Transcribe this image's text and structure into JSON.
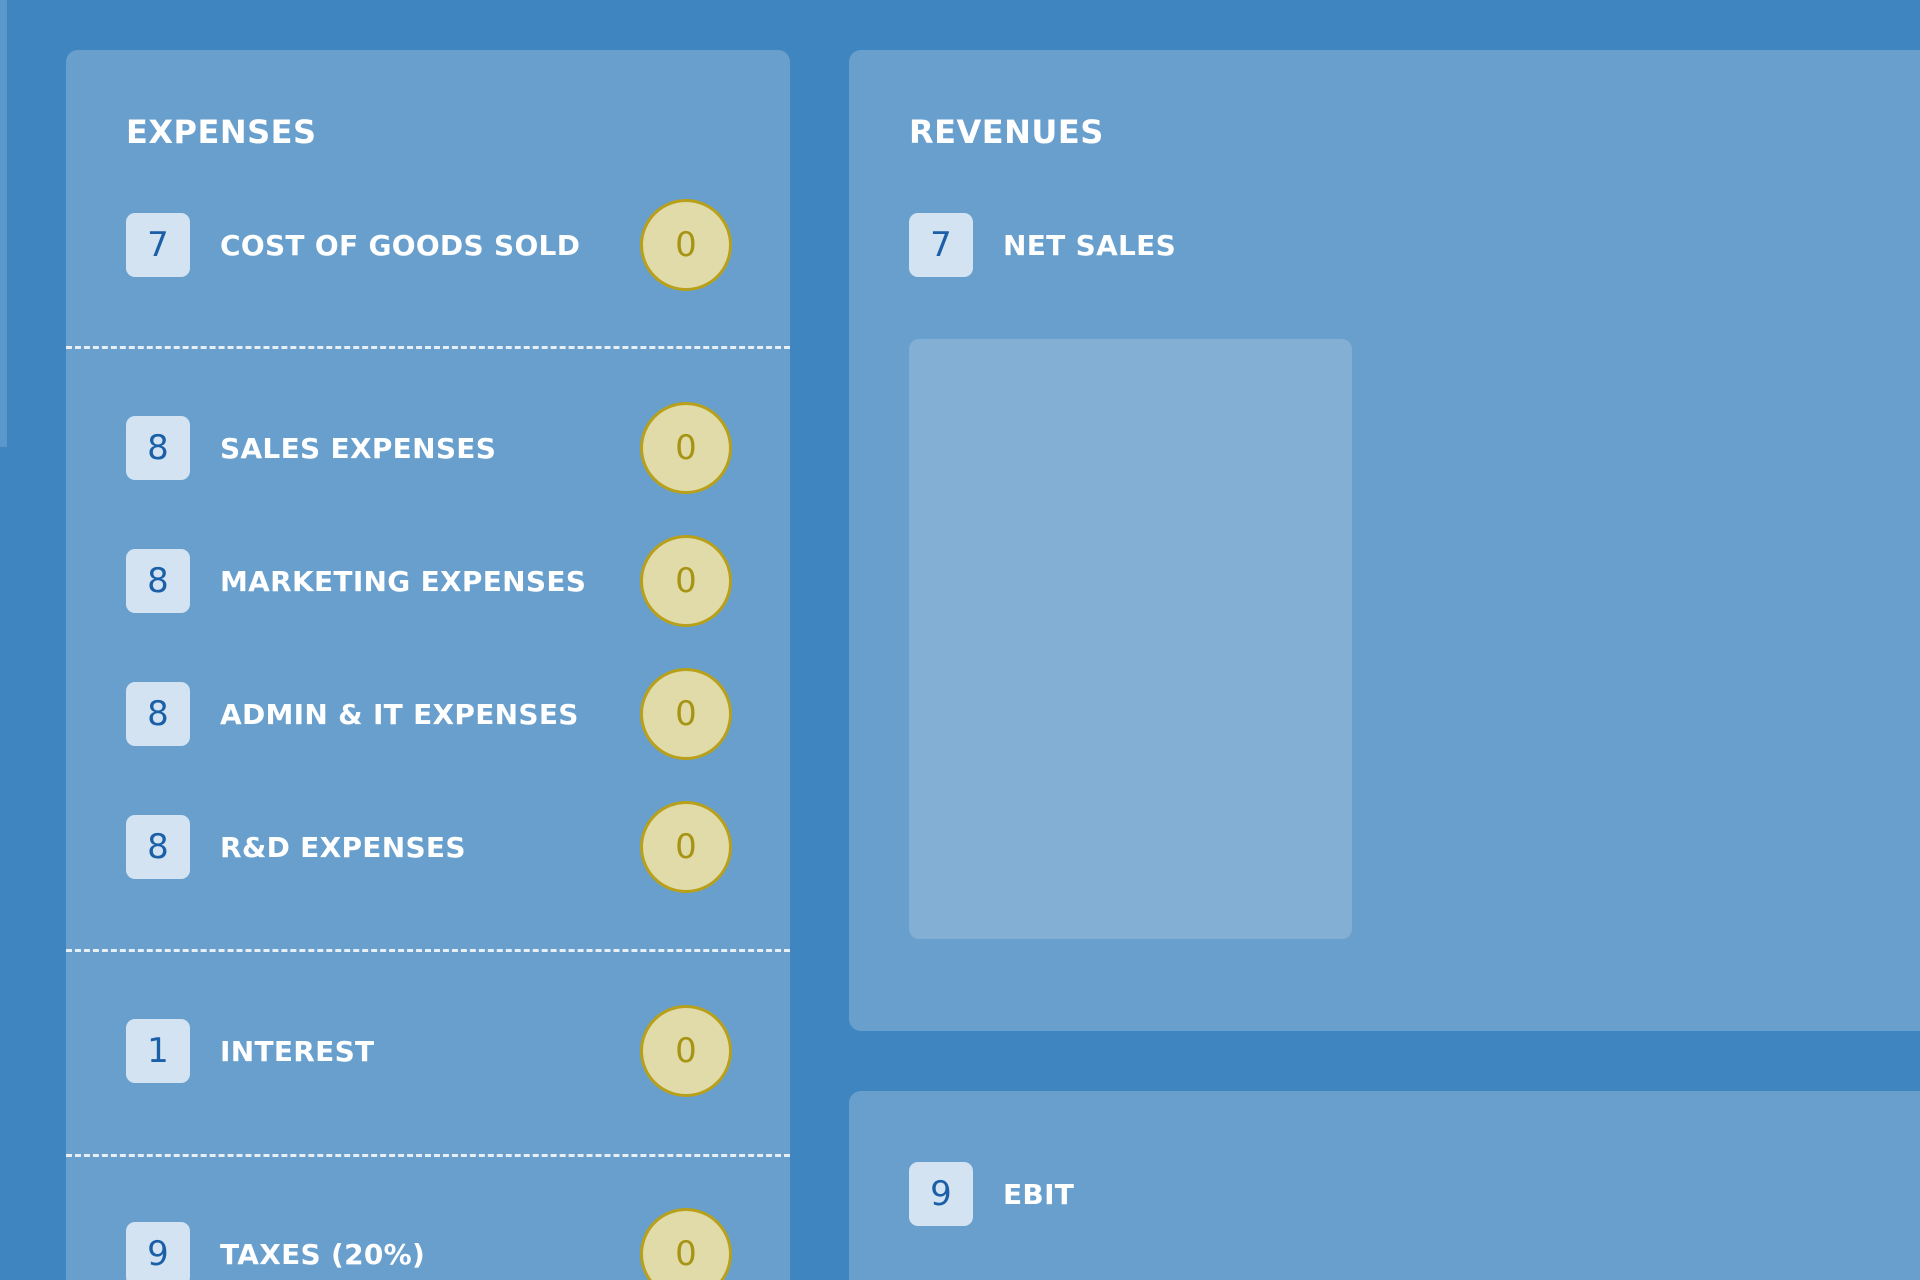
{
  "expenses": {
    "title": "EXPENSES",
    "items": [
      {
        "count": "7",
        "label": "COST OF GOODS SOLD",
        "value": "0"
      },
      {
        "count": "8",
        "label": "SALES EXPENSES",
        "value": "0"
      },
      {
        "count": "8",
        "label": "MARKETING EXPENSES",
        "value": "0"
      },
      {
        "count": "8",
        "label": "ADMIN & IT EXPENSES",
        "value": "0"
      },
      {
        "count": "8",
        "label": "R&D EXPENSES",
        "value": "0"
      },
      {
        "count": "1",
        "label": "INTEREST",
        "value": "0"
      },
      {
        "count": "9",
        "label": "TAXES (20%)",
        "value": "0"
      }
    ]
  },
  "revenues": {
    "title": "REVENUES",
    "items": [
      {
        "count": "7",
        "label": "NET SALES"
      }
    ]
  },
  "ebit": {
    "count": "9",
    "label": "EBIT"
  },
  "colors": {
    "background": "#3f86c1",
    "panel": "#689fcd",
    "badge": "#d3e3f1",
    "coin": "#e0dba8",
    "coin_border": "#b8a01a"
  }
}
